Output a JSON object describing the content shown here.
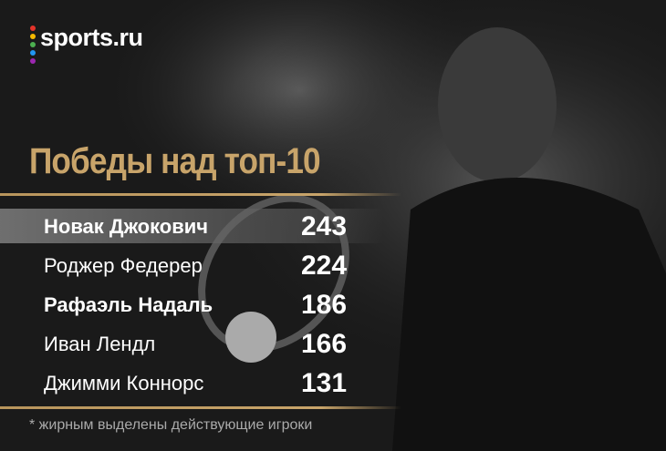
{
  "logo": "sports.ru",
  "title": "Победы над топ-10",
  "table": {
    "rows": [
      {
        "name": "Новак Джокович",
        "value": 243,
        "bold": true
      },
      {
        "name": "Роджер Федерер",
        "value": 224,
        "bold": false
      },
      {
        "name": "Рафаэль Надаль",
        "value": 186,
        "bold": true
      },
      {
        "name": "Иван Лендл",
        "value": 166,
        "bold": false
      },
      {
        "name": "Джимми Коннорс",
        "value": 131,
        "bold": false
      }
    ]
  },
  "footnote": "* жирным выделены действующие игроки"
}
